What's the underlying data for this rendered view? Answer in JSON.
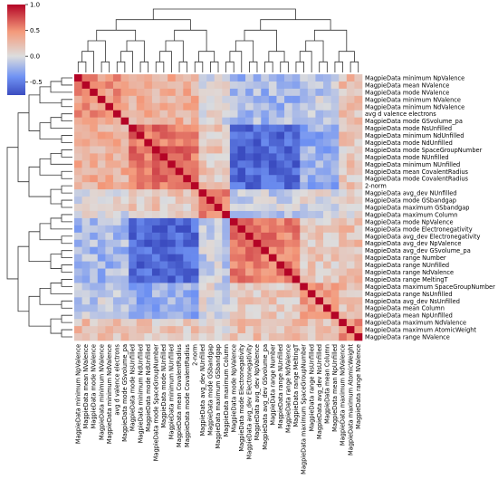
{
  "chart_data": {
    "type": "heatmap",
    "title": "",
    "xlabel": "",
    "ylabel": "",
    "colormap": {
      "name": "coolwarm",
      "low_color": "#3b4cc0",
      "mid_color": "#dddddd",
      "high_color": "#b40426",
      "vmin": -0.75,
      "vmax": 1.0,
      "ticks": [
        1.0,
        0.5,
        0.0,
        -0.5
      ],
      "tick_labels": [
        "1.0",
        "0.5",
        "0.0",
        "-0.5"
      ]
    },
    "dendrograms": {
      "row": true,
      "column": true,
      "placement": "top and left"
    },
    "legend": {
      "type": "colorbar",
      "placement": "top-left"
    },
    "grid": false,
    "row_labels": [
      "MagpieData minimum NpValence",
      "MagpieData mean NValence",
      "MagpieData mode NValence",
      "MagpieData minimum NValence",
      "MagpieData minimum NdValence",
      "avg d valence electrons",
      "MagpieData mode GSvolume_pa",
      "MagpieData mode NsUnfilled",
      "MagpieData minimum NdUnfilled",
      "MagpieData mode NdUnfilled",
      "MagpieData mode SpaceGroupNumber",
      "MagpieData mode NUnfilled",
      "MagpieData minimum NUnfilled",
      "MagpieData mean CovalentRadius",
      "MagpieData mode CovalentRadius",
      "2-norm",
      "MagpieData avg_dev NUnfilled",
      "MagpieData mode GSbandgap",
      "MagpieData maximum GSbandgap",
      "MagpieData maximum Column",
      "MagpieData mode NpValence",
      "MagpieData mode Electronegativity",
      "MagpieData avg_dev Electronegativity",
      "MagpieData avg_dev NpValence",
      "MagpieData avg_dev GSvolume_pa",
      "MagpieData range Number",
      "MagpieData range NUnfilled",
      "MagpieData range NdValence",
      "MagpieData range MeltingT",
      "MagpieData maximum SpaceGroupNumber",
      "MagpieData range NsUnfilled",
      "MagpieData avg_dev NsUnfilled",
      "MagpieData mean Column",
      "MagpieData mean NpUnfilled",
      "MagpieData maximum NdValence",
      "MagpieData maximum AtomicWeight",
      "MagpieData range NValence"
    ],
    "col_labels": [
      "MagpieData minimum NpValence",
      "MagpieData mean NValence",
      "MagpieData mode NValence",
      "MagpieData minimum NValence",
      "MagpieData minimum NdValence",
      "avg d valence electrons",
      "MagpieData mode GSvolume_pa",
      "MagpieData mode NsUnfilled",
      "MagpieData minimum NdUnfilled",
      "MagpieData mode NdUnfilled",
      "MagpieData mode SpaceGroupNumber",
      "MagpieData mode NUnfilled",
      "MagpieData minimum NUnfilled",
      "MagpieData mean CovalentRadius",
      "MagpieData mode CovalentRadius",
      "2-norm",
      "MagpieData avg_dev NUnfilled",
      "MagpieData mode GSbandgap",
      "MagpieData maximum GSbandgap",
      "MagpieData maximum Column",
      "MagpieData mode NpValence",
      "MagpieData mode Electronegativity",
      "MagpieData avg_dev Electronegativity",
      "MagpieData avg_dev NpValence",
      "MagpieData avg_dev GSvolume_pa",
      "MagpieData range Number",
      "MagpieData range NUnfilled",
      "MagpieData range NdValence",
      "MagpieData range MeltingT",
      "MagpieData maximum SpaceGroupNumber",
      "MagpieData range NsUnfilled",
      "MagpieData avg_dev NsUnfilled",
      "MagpieData mean Column",
      "MagpieData mean NpUnfilled",
      "MagpieData maximum NdValence",
      "MagpieData maximum AtomicWeight",
      "MagpieData range NValence"
    ],
    "cluster_blocks": [
      {
        "start": 0,
        "end": 6,
        "within": 0.45
      },
      {
        "start": 7,
        "end": 15,
        "within": 0.6
      },
      {
        "start": 16,
        "end": 19,
        "within": 0.5
      },
      {
        "start": 20,
        "end": 28,
        "within": 0.55
      },
      {
        "start": 29,
        "end": 33,
        "within": 0.4
      },
      {
        "start": 34,
        "end": 36,
        "within": 0.5
      }
    ],
    "between_blocks": [
      [
        1.0,
        0.3,
        0.0,
        -0.2,
        -0.1,
        0.2
      ],
      [
        0.3,
        1.0,
        0.15,
        -0.6,
        -0.25,
        0.15
      ],
      [
        0.0,
        0.15,
        1.0,
        -0.1,
        0.0,
        0.1
      ],
      [
        -0.2,
        -0.6,
        -0.1,
        1.0,
        0.15,
        0.2
      ],
      [
        -0.1,
        -0.25,
        0.0,
        0.15,
        1.0,
        0.2
      ],
      [
        0.2,
        0.15,
        0.1,
        0.2,
        0.2,
        1.0
      ]
    ],
    "diagonal": 1.0
  }
}
